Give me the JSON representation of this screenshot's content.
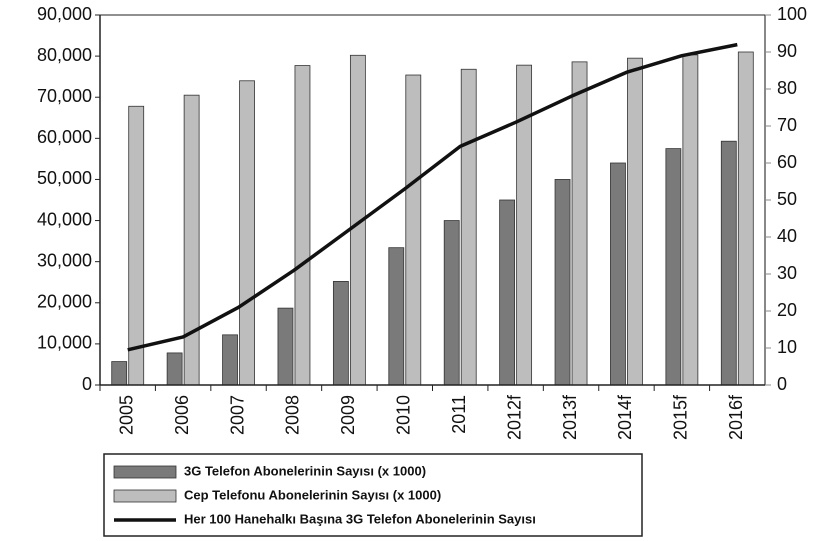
{
  "chart_data": {
    "type": "bar",
    "categories": [
      "2005",
      "2006",
      "2007",
      "2008",
      "2009",
      "2010",
      "2011",
      "2012f",
      "2013f",
      "2014f",
      "2015f",
      "2016f"
    ],
    "series": [
      {
        "name": "3G Telefon Abonelerinin Sayısı (x 1000)",
        "color": "#7a7a7a",
        "values": [
          5700,
          7800,
          12200,
          18700,
          25200,
          33400,
          40000,
          45000,
          50000,
          54000,
          57500,
          59300
        ]
      },
      {
        "name": "Cep Telefonu Abonelerinin Sayısı (x 1000)",
        "color": "#bdbdbd",
        "values": [
          67800,
          70500,
          74000,
          77700,
          80200,
          75400,
          76800,
          77800,
          78600,
          79500,
          80300,
          81000
        ]
      },
      {
        "name": "Her 100 Hanehalkı Başına 3G Telefon Abonelerinin Sayısı",
        "color": "#111111",
        "type": "line",
        "axis": "y2",
        "values": [
          9.5,
          13,
          21,
          31,
          42,
          53,
          64.5,
          71,
          78,
          84.5,
          89,
          92
        ]
      }
    ],
    "ylim": [
      0,
      90000
    ],
    "yticks": [
      0,
      {
        "value": 10000,
        "label": "10,000"
      },
      {
        "value": 20000,
        "label": "20,000"
      },
      {
        "value": 30000,
        "label": "30,000"
      },
      {
        "value": 40000,
        "label": "40,000"
      },
      {
        "value": 50000,
        "label": "50,000"
      },
      {
        "value": 60000,
        "label": "60,000"
      },
      {
        "value": 70000,
        "label": "70,000"
      },
      {
        "value": 80000,
        "label": "80,000"
      },
      {
        "value": 90000,
        "label": "90,000"
      }
    ],
    "y2lim": [
      0,
      100
    ],
    "y2ticks": [
      0,
      10,
      20,
      30,
      40,
      50,
      60,
      70,
      80,
      90,
      100
    ],
    "grid": false
  }
}
